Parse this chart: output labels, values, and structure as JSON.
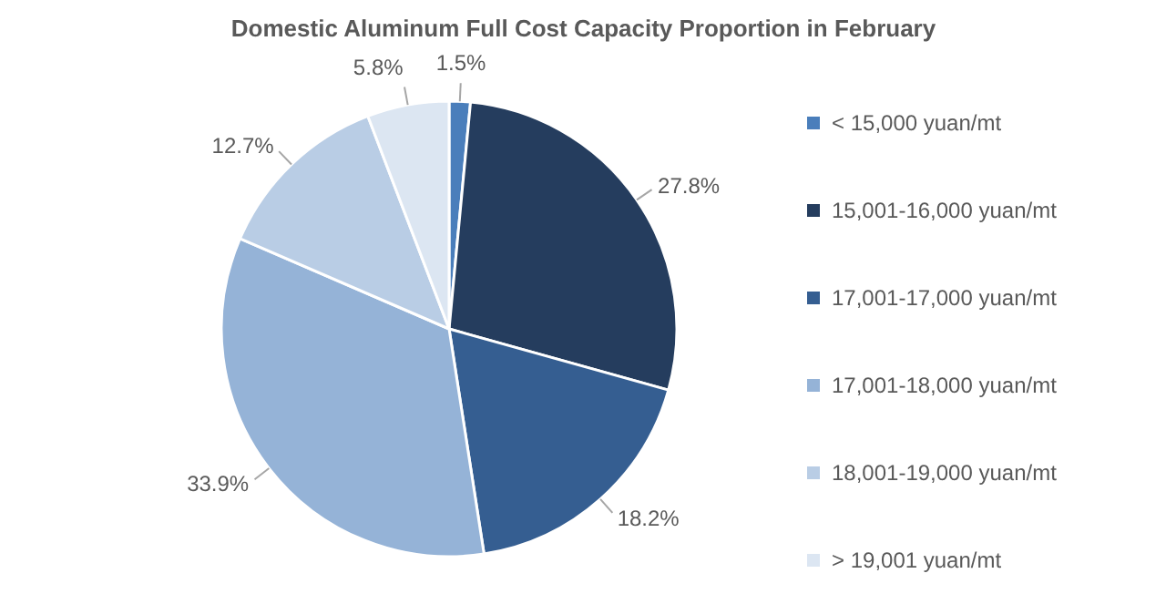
{
  "chart_data": {
    "type": "pie",
    "title": "Domestic Aluminum Full Cost Capacity Proportion in February",
    "categories": [
      "< 15,000 yuan/mt",
      "15,001-16,000 yuan/mt",
      "17,001-17,000 yuan/mt",
      "17,001-18,000 yuan/mt",
      "18,001-19,000 yuan/mt",
      "> 19,001 yuan/mt"
    ],
    "values": [
      1.5,
      27.8,
      18.2,
      33.9,
      12.7,
      5.8
    ],
    "value_labels": [
      "1.5%",
      "27.8%",
      "18.2%",
      "33.9%",
      "12.7%",
      "5.8%"
    ],
    "colors": [
      "#4a7ebb",
      "#253d5e",
      "#355e91",
      "#95b3d7",
      "#b9cde5",
      "#dce6f2"
    ],
    "legend": "right"
  }
}
